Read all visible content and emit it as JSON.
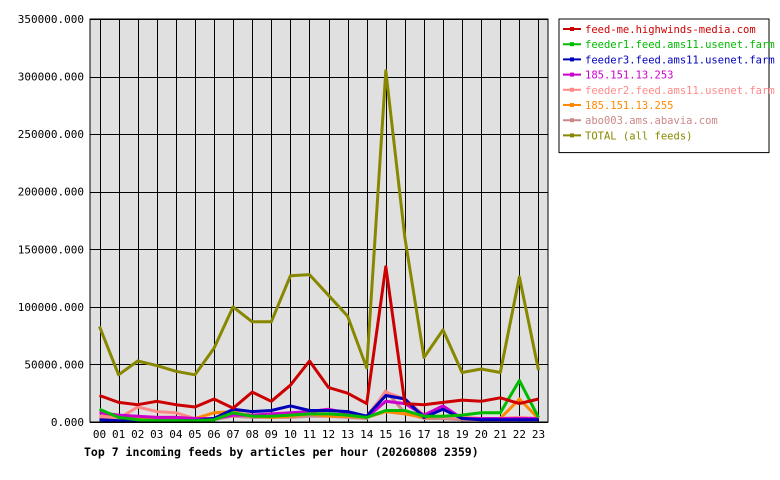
{
  "chart_data": {
    "type": "line",
    "title": "Top 7 incoming feeds by articles per hour (20260808 2359)",
    "xlabel": "",
    "ylabel": "",
    "ylim": [
      0,
      350000
    ],
    "y_ticks": [
      "0.000",
      "50000.000",
      "100000.000",
      "150000.000",
      "200000.000",
      "250000.000",
      "300000.000",
      "350000.000"
    ],
    "y_tick_values": [
      0,
      50000,
      100000,
      150000,
      200000,
      250000,
      300000,
      350000
    ],
    "x": [
      "00",
      "01",
      "02",
      "03",
      "04",
      "05",
      "06",
      "07",
      "08",
      "09",
      "10",
      "11",
      "12",
      "13",
      "14",
      "15",
      "16",
      "17",
      "18",
      "19",
      "20",
      "21",
      "22",
      "23"
    ],
    "grid": true,
    "legend_position": "right",
    "series": [
      {
        "name": "feed-me.highwinds-media.com",
        "color": "#cc0000",
        "values": [
          23000,
          17000,
          15000,
          18000,
          15000,
          13000,
          20000,
          12000,
          26000,
          18000,
          32000,
          53000,
          30000,
          25000,
          16000,
          135000,
          16000,
          15000,
          17000,
          19000,
          18000,
          21000,
          16000,
          20000
        ]
      },
      {
        "name": "feeder1.feed.ams11.usenet.farm",
        "color": "#00bb00",
        "values": [
          11000,
          4000,
          2000,
          1000,
          1000,
          1000,
          2000,
          8000,
          5000,
          5000,
          6000,
          7000,
          7000,
          6000,
          4000,
          10000,
          10000,
          5000,
          5000,
          6000,
          8000,
          8000,
          36000,
          4000
        ]
      },
      {
        "name": "feeder3.feed.ams11.usenet.farm",
        "color": "#0000bb",
        "values": [
          2000,
          1000,
          1000,
          1000,
          1000,
          1000,
          3000,
          11000,
          9000,
          10000,
          14000,
          10000,
          10000,
          9000,
          5000,
          23000,
          20000,
          4000,
          11000,
          3000,
          2000,
          2000,
          2000,
          2000
        ]
      },
      {
        "name": "185.151.13.253",
        "color": "#cc00cc",
        "values": [
          8000,
          6000,
          5000,
          4000,
          4000,
          3000,
          3000,
          6000,
          6000,
          7000,
          8000,
          9000,
          11000,
          8000,
          4000,
          18000,
          16000,
          6000,
          14000,
          3000,
          3000,
          3000,
          3000,
          3000
        ]
      },
      {
        "name": "feeder2.feed.ams11.usenet.farm",
        "color": "#ff8888",
        "values": [
          5000,
          3000,
          13000,
          9000,
          8000,
          3000,
          3000,
          8000,
          6000,
          6000,
          7000,
          8000,
          7000,
          6000,
          5000,
          26000,
          20000,
          6000,
          4000,
          4000,
          3000,
          3000,
          4000,
          3000
        ]
      },
      {
        "name": "185.151.13.255",
        "color": "#ff8800",
        "values": [
          5000,
          4000,
          4000,
          4000,
          4000,
          3000,
          8000,
          9000,
          5000,
          4000,
          5000,
          7000,
          5000,
          5000,
          4000,
          9000,
          7000,
          4000,
          5000,
          4000,
          3000,
          3000,
          20000,
          3000
        ]
      },
      {
        "name": "abo003.ams.abavia.com",
        "color": "#cc8888",
        "values": [
          3000,
          2000,
          2000,
          2000,
          2000,
          1000,
          2000,
          5000,
          4000,
          4000,
          4000,
          5000,
          5000,
          4000,
          3000,
          27000,
          8000,
          3000,
          3000,
          2000,
          2000,
          2000,
          2000,
          2000
        ]
      },
      {
        "name": "TOTAL (all feeds)",
        "color": "#888800",
        "values": [
          83000,
          41000,
          53000,
          49000,
          44000,
          41000,
          64000,
          100000,
          87000,
          87000,
          127000,
          128000,
          110000,
          92000,
          47000,
          305000,
          160000,
          56000,
          80000,
          43000,
          46000,
          43000,
          126000,
          45000
        ]
      }
    ]
  }
}
